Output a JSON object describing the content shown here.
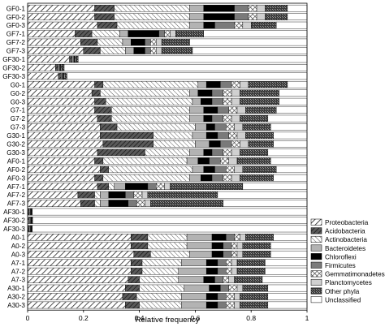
{
  "chart_data": {
    "type": "bar",
    "orientation": "horizontal",
    "stacked": true,
    "xlabel": "Relative frequency",
    "xlim": [
      0,
      1
    ],
    "xticks": [
      "0",
      "0.2",
      "0.4",
      "0.6",
      "0.8",
      "1"
    ],
    "legend_position": "right",
    "grid": false,
    "categories": [
      "GF0-1",
      "GF0-2",
      "GF0-3",
      "GF7-1",
      "GF7-2",
      "GF7-3",
      "GF30-1",
      "GF30-2",
      "GF30-3",
      "G0-1",
      "G0-2",
      "G0-3",
      "G7-1",
      "G7-2",
      "G7-3",
      "G30-1",
      "G30-2",
      "G30-3",
      "AF0-1",
      "AF0-2",
      "AF0-3",
      "AF7-1",
      "AF7-2",
      "AF7-3",
      "AF30-1",
      "AF30-2",
      "AF30-3",
      "A0-1",
      "A0-2",
      "A0-3",
      "A7-1",
      "A7-2",
      "A7-3",
      "A30-1",
      "A30-2",
      "A30-3"
    ],
    "series": [
      {
        "name": "Proteobacteria",
        "values": [
          0.24,
          0.24,
          0.25,
          0.17,
          0.19,
          0.2,
          0.15,
          0.1,
          0.11,
          0.24,
          0.23,
          0.24,
          0.24,
          0.25,
          0.26,
          0.26,
          0.27,
          0.25,
          0.24,
          0.26,
          0.24,
          0.25,
          0.18,
          0.19,
          0.003,
          0.004,
          0.003,
          0.37,
          0.37,
          0.38,
          0.37,
          0.37,
          0.36,
          0.35,
          0.34,
          0.35
        ]
      },
      {
        "name": "Acidobacteria",
        "values": [
          0.07,
          0.07,
          0.07,
          0.06,
          0.06,
          0.06,
          0.01,
          0.01,
          0.01,
          0.03,
          0.03,
          0.04,
          0.06,
          0.05,
          0.06,
          0.19,
          0.18,
          0.17,
          0.03,
          0.03,
          0.03,
          0.04,
          0.06,
          0.05,
          0.003,
          0.003,
          0.003,
          0.06,
          0.06,
          0.06,
          0.04,
          0.04,
          0.04,
          0.05,
          0.05,
          0.05
        ]
      },
      {
        "name": "Actinobacteria",
        "values": [
          0.27,
          0.27,
          0.26,
          0.1,
          0.09,
          0.09,
          0.0,
          0.0,
          0.0,
          0.34,
          0.32,
          0.31,
          0.28,
          0.28,
          0.28,
          0.14,
          0.15,
          0.16,
          0.3,
          0.3,
          0.31,
          0.02,
          0.02,
          0.02,
          0.003,
          0.003,
          0.003,
          0.14,
          0.14,
          0.14,
          0.14,
          0.13,
          0.14,
          0.16,
          0.16,
          0.15
        ]
      },
      {
        "name": "Bacteroidetes",
        "values": [
          0.05,
          0.05,
          0.05,
          0.03,
          0.03,
          0.03,
          0.005,
          0.005,
          0.005,
          0.03,
          0.03,
          0.03,
          0.05,
          0.05,
          0.04,
          0.05,
          0.05,
          0.05,
          0.04,
          0.04,
          0.04,
          0.04,
          0.03,
          0.03,
          0.002,
          0.002,
          0.002,
          0.09,
          0.09,
          0.08,
          0.09,
          0.1,
          0.09,
          0.09,
          0.09,
          0.09
        ]
      },
      {
        "name": "Chloroflexi",
        "values": [
          0.11,
          0.11,
          0.04,
          0.11,
          0.05,
          0.04,
          0.003,
          0.003,
          0.003,
          0.05,
          0.05,
          0.04,
          0.05,
          0.03,
          0.03,
          0.04,
          0.04,
          0.03,
          0.04,
          0.04,
          0.04,
          0.08,
          0.06,
          0.07,
          0.001,
          0.001,
          0.001,
          0.05,
          0.04,
          0.04,
          0.04,
          0.04,
          0.04,
          0.04,
          0.04,
          0.04
        ]
      },
      {
        "name": "Firmicutes",
        "values": [
          0.05,
          0.05,
          0.07,
          0.02,
          0.02,
          0.02,
          0.002,
          0.002,
          0.002,
          0.04,
          0.04,
          0.04,
          0.04,
          0.04,
          0.04,
          0.04,
          0.04,
          0.04,
          0.04,
          0.04,
          0.04,
          0.03,
          0.03,
          0.03,
          0.001,
          0.001,
          0.001,
          0.03,
          0.03,
          0.03,
          0.03,
          0.03,
          0.03,
          0.03,
          0.03,
          0.03
        ]
      },
      {
        "name": "Gemmatimonadetes",
        "values": [
          0.03,
          0.03,
          0.03,
          0.02,
          0.02,
          0.02,
          0.003,
          0.003,
          0.003,
          0.03,
          0.03,
          0.03,
          0.03,
          0.03,
          0.03,
          0.03,
          0.03,
          0.03,
          0.03,
          0.03,
          0.03,
          0.03,
          0.03,
          0.03,
          0.001,
          0.001,
          0.001,
          0.02,
          0.02,
          0.02,
          0.02,
          0.02,
          0.02,
          0.03,
          0.03,
          0.03
        ]
      },
      {
        "name": "Planctomycetes",
        "values": [
          0.03,
          0.03,
          0.03,
          0.02,
          0.02,
          0.02,
          0.002,
          0.002,
          0.002,
          0.03,
          0.03,
          0.03,
          0.03,
          0.03,
          0.03,
          0.03,
          0.03,
          0.03,
          0.03,
          0.03,
          0.03,
          0.02,
          0.02,
          0.02,
          0.001,
          0.001,
          0.001,
          0.02,
          0.02,
          0.02,
          0.02,
          0.02,
          0.02,
          0.02,
          0.02,
          0.02
        ]
      },
      {
        "name": "Other phyla",
        "values": [
          0.08,
          0.08,
          0.09,
          0.1,
          0.1,
          0.11,
          0.006,
          0.006,
          0.006,
          0.14,
          0.14,
          0.14,
          0.11,
          0.1,
          0.1,
          0.1,
          0.09,
          0.1,
          0.12,
          0.12,
          0.12,
          0.26,
          0.25,
          0.26,
          0.002,
          0.002,
          0.002,
          0.1,
          0.1,
          0.1,
          0.1,
          0.1,
          0.1,
          0.09,
          0.1,
          0.1
        ]
      },
      {
        "name": "Unclassified",
        "values": [
          0.07,
          0.07,
          0.11,
          0.37,
          0.42,
          0.41,
          0.82,
          0.87,
          0.86,
          0.07,
          0.1,
          0.1,
          0.11,
          0.14,
          0.13,
          0.12,
          0.12,
          0.14,
          0.13,
          0.11,
          0.12,
          0.23,
          0.32,
          0.3,
          0.99,
          0.99,
          0.99,
          0.12,
          0.13,
          0.13,
          0.15,
          0.15,
          0.16,
          0.14,
          0.14,
          0.14
        ]
      }
    ]
  }
}
